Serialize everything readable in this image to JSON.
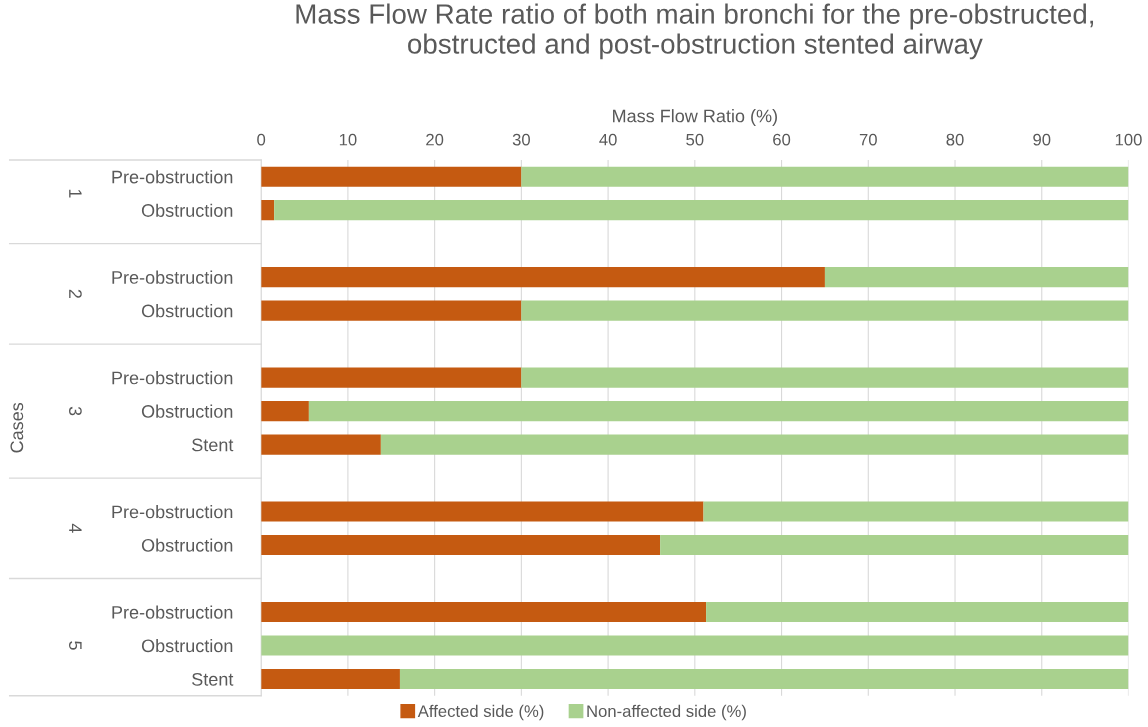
{
  "chart_data": {
    "type": "bar",
    "orientation": "horizontal",
    "stacked": true,
    "title": "Mass Flow Rate ratio of both main bronchi for the pre-obstructed,\nobstructed and post-obstruction stented airway",
    "xlabel": "Mass Flow Ratio (%)",
    "ylabel": "Cases",
    "categories": [
      "Pre-obstruction",
      "Obstruction",
      null,
      "Pre-obstruction",
      "Obstruction",
      null,
      "Pre-obstruction",
      "Obstruction",
      "Stent",
      null,
      "Pre-obstruction",
      "Obstruction",
      null,
      "Pre-obstruction",
      "Obstruction",
      "Stent"
    ],
    "series": [
      {
        "name": "Affected side (%)",
        "color": "#c55a11",
        "values": [
          30,
          1.5,
          null,
          65,
          30,
          null,
          30,
          5.5,
          13.8,
          null,
          51,
          46,
          null,
          51.3,
          0,
          16
        ]
      },
      {
        "name": "Non-affected side (%)",
        "color": "#a9d18e",
        "values": [
          70,
          98.5,
          null,
          35,
          70,
          null,
          70,
          94.5,
          86.2,
          null,
          49,
          54,
          null,
          48.7,
          100,
          84
        ]
      }
    ],
    "annotations": [
      "1",
      "2",
      "3",
      "4",
      "5"
    ],
    "xlim": [
      0,
      100
    ],
    "xticks": [
      0,
      10,
      20,
      30,
      40,
      50,
      60,
      70,
      80,
      90,
      100
    ],
    "grid": "x",
    "legend": "bottom"
  }
}
